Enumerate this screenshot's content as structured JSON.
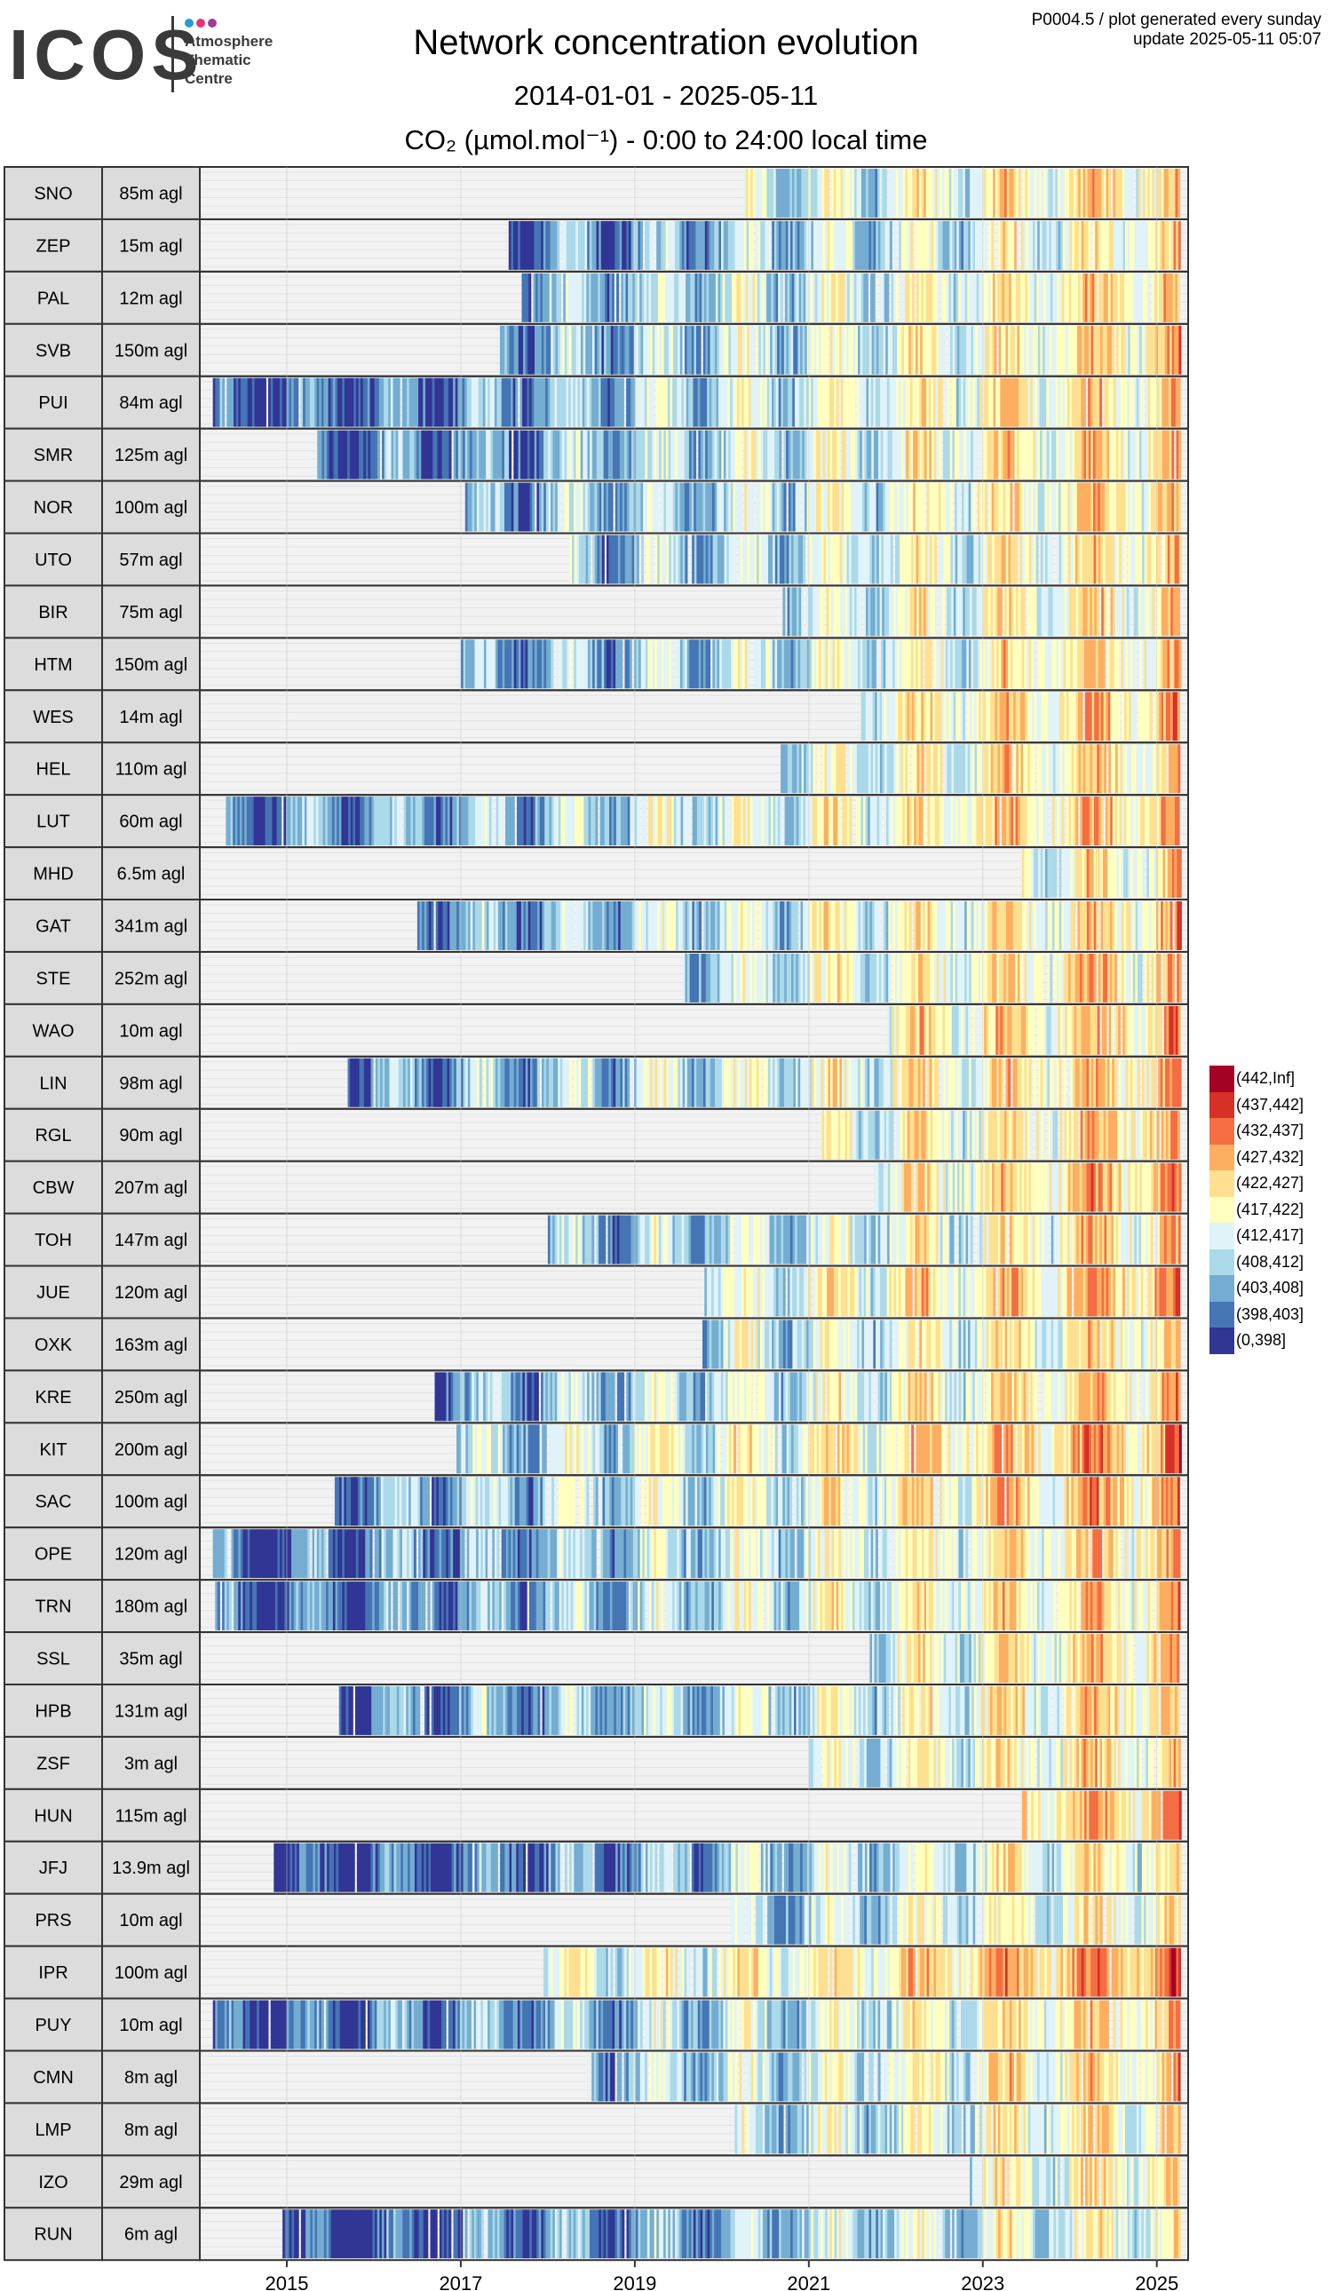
{
  "header": {
    "logo_text": "ICOS",
    "logo_sub": [
      "Atmosphere",
      "Thematic",
      "Centre"
    ],
    "logo_dot_colors": [
      "#2a9bd8",
      "#e2347a",
      "#9b3c9a"
    ],
    "title": "Network concentration evolution",
    "date_range": "2014-01-01 - 2025-05-11",
    "subtitle": "CO₂ (µmol.mol⁻¹) - 0:00 to 24:00 local time",
    "meta_line1": "P0004.5 / plot generated every sunday",
    "meta_line2": "update  2025-05-11 05:07"
  },
  "chart_data": {
    "type": "heatmap",
    "x_range": [
      "2014-01-01",
      "2025-05-11"
    ],
    "x_ticks": [
      "2015",
      "2017",
      "2019",
      "2021",
      "2023",
      "2025"
    ],
    "grid": true,
    "legend_placement": "right",
    "legend": [
      {
        "label": "(442,Inf]",
        "color": "#a50026"
      },
      {
        "label": "(437,442]",
        "color": "#d73027"
      },
      {
        "label": "(432,437]",
        "color": "#f46d43"
      },
      {
        "label": "(427,432]",
        "color": "#fdae61"
      },
      {
        "label": "(422,427]",
        "color": "#fee090"
      },
      {
        "label": "(417,422]",
        "color": "#ffffbf"
      },
      {
        "label": "(412,417]",
        "color": "#e0f3f8"
      },
      {
        "label": "(408,412]",
        "color": "#abd9e9"
      },
      {
        "label": "(403,408]",
        "color": "#74add1"
      },
      {
        "label": "(398,403]",
        "color": "#4575b4"
      },
      {
        "label": "(0,398]",
        "color": "#313695"
      }
    ],
    "stations": [
      {
        "code": "SNO",
        "height": "85m agl",
        "start": 2020.25,
        "offset": 0.0
      },
      {
        "code": "ZEP",
        "height": "15m agl",
        "start": 2017.55,
        "offset": -3.0
      },
      {
        "code": "PAL",
        "height": "12m agl",
        "start": 2017.7,
        "offset": 0.0
      },
      {
        "code": "SVB",
        "height": "150m agl",
        "start": 2017.45,
        "offset": 0.0
      },
      {
        "code": "PUI",
        "height": "84m agl",
        "start": 2014.15,
        "offset": 0.0
      },
      {
        "code": "SMR",
        "height": "125m agl",
        "start": 2015.35,
        "offset": 0.0
      },
      {
        "code": "NOR",
        "height": "100m agl",
        "start": 2017.05,
        "offset": 0.0
      },
      {
        "code": "UTO",
        "height": "57m agl",
        "start": 2018.25,
        "offset": -1.0
      },
      {
        "code": "BIR",
        "height": "75m agl",
        "start": 2020.7,
        "offset": -1.0
      },
      {
        "code": "HTM",
        "height": "150m agl",
        "start": 2017.0,
        "offset": 0.0
      },
      {
        "code": "WES",
        "height": "14m agl",
        "start": 2021.6,
        "offset": 2.0
      },
      {
        "code": "HEL",
        "height": "110m agl",
        "start": 2020.65,
        "offset": 1.0
      },
      {
        "code": "LUT",
        "height": "60m agl",
        "start": 2014.3,
        "offset": 3.0
      },
      {
        "code": "MHD",
        "height": "6.5m agl",
        "start": 2023.45,
        "offset": -2.0
      },
      {
        "code": "GAT",
        "height": "341m agl",
        "start": 2016.5,
        "offset": 1.0
      },
      {
        "code": "STE",
        "height": "252m agl",
        "start": 2019.55,
        "offset": 1.0
      },
      {
        "code": "WAO",
        "height": "10m agl",
        "start": 2021.9,
        "offset": 3.0
      },
      {
        "code": "LIN",
        "height": "98m agl",
        "start": 2015.7,
        "offset": 2.0
      },
      {
        "code": "RGL",
        "height": "90m agl",
        "start": 2021.15,
        "offset": 1.0
      },
      {
        "code": "CBW",
        "height": "207m agl",
        "start": 2021.75,
        "offset": 3.0
      },
      {
        "code": "TOH",
        "height": "147m agl",
        "start": 2018.0,
        "offset": 0.0
      },
      {
        "code": "JUE",
        "height": "120m agl",
        "start": 2019.8,
        "offset": 4.0
      },
      {
        "code": "OXK",
        "height": "163m agl",
        "start": 2019.75,
        "offset": 0.0
      },
      {
        "code": "KRE",
        "height": "250m agl",
        "start": 2016.7,
        "offset": 1.0
      },
      {
        "code": "KIT",
        "height": "200m agl",
        "start": 2016.95,
        "offset": 5.0
      },
      {
        "code": "SAC",
        "height": "100m agl",
        "start": 2015.55,
        "offset": 3.0
      },
      {
        "code": "OPE",
        "height": "120m agl",
        "start": 2014.15,
        "offset": 1.0
      },
      {
        "code": "TRN",
        "height": "180m agl",
        "start": 2014.15,
        "offset": 1.0
      },
      {
        "code": "SSL",
        "height": "35m agl",
        "start": 2021.7,
        "offset": 0.0
      },
      {
        "code": "HPB",
        "height": "131m agl",
        "start": 2015.6,
        "offset": 0.0
      },
      {
        "code": "ZSF",
        "height": "3m agl",
        "start": 2021.0,
        "offset": -1.0
      },
      {
        "code": "HUN",
        "height": "115m agl",
        "start": 2023.45,
        "offset": 4.0
      },
      {
        "code": "JFJ",
        "height": "13.9m agl",
        "start": 2014.85,
        "offset": -3.0
      },
      {
        "code": "PRS",
        "height": "10m agl",
        "start": 2020.1,
        "offset": -3.0
      },
      {
        "code": "IPR",
        "height": "100m agl",
        "start": 2017.95,
        "offset": 7.0
      },
      {
        "code": "PUY",
        "height": "10m agl",
        "start": 2014.15,
        "offset": 0.0
      },
      {
        "code": "CMN",
        "height": "8m agl",
        "start": 2018.45,
        "offset": 0.0
      },
      {
        "code": "LMP",
        "height": "8m agl",
        "start": 2020.15,
        "offset": -2.0
      },
      {
        "code": "IZO",
        "height": "29m agl",
        "start": 2022.85,
        "offset": -2.0
      },
      {
        "code": "RUN",
        "height": "6m agl",
        "start": 2014.95,
        "offset": -4.0
      }
    ]
  }
}
